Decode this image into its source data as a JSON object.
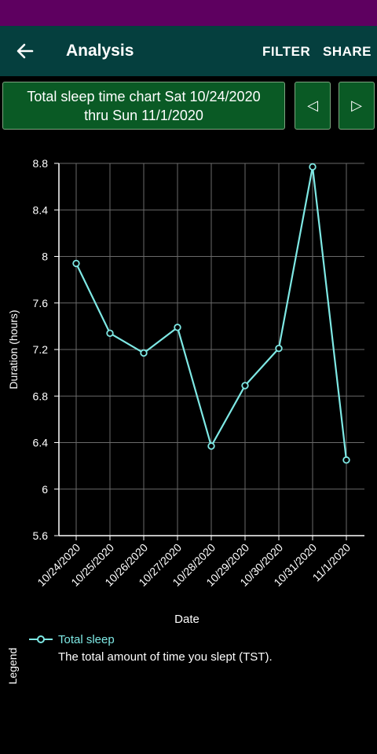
{
  "app_bar": {
    "title": "Analysis",
    "filter_label": "FILTER",
    "share_label": "SHARE"
  },
  "range": {
    "line1": "Total sleep time chart Sat 10/24/2020",
    "line2": "thru Sun 11/1/2020"
  },
  "nav": {
    "prev_symbol": "◁",
    "next_symbol": "▷"
  },
  "legend": {
    "title": "Legend",
    "series_name": "Total sleep",
    "series_desc": "The total amount of time you slept (TST)."
  },
  "colors": {
    "line": "#7ee8e4",
    "status_bar": "#5e0060",
    "app_bar": "#053f3e",
    "button": "#0a5a25"
  },
  "chart_data": {
    "type": "line",
    "title": "",
    "xlabel": "Date",
    "ylabel": "Duration (hours)",
    "categories": [
      "10/24/2020",
      "10/25/2020",
      "10/26/2020",
      "10/27/2020",
      "10/28/2020",
      "10/29/2020",
      "10/30/2020",
      "10/31/2020",
      "11/1/2020"
    ],
    "series": [
      {
        "name": "Total sleep",
        "values": [
          7.94,
          7.34,
          7.17,
          7.39,
          6.37,
          6.89,
          7.21,
          8.77,
          6.25
        ]
      }
    ],
    "ylim": [
      5.6,
      8.8
    ],
    "yticks": [
      "5.6",
      "6",
      "6.4",
      "6.8",
      "7.2",
      "7.6",
      "8",
      "8.4",
      "8.8"
    ],
    "grid": true,
    "legend_position": "bottom"
  }
}
